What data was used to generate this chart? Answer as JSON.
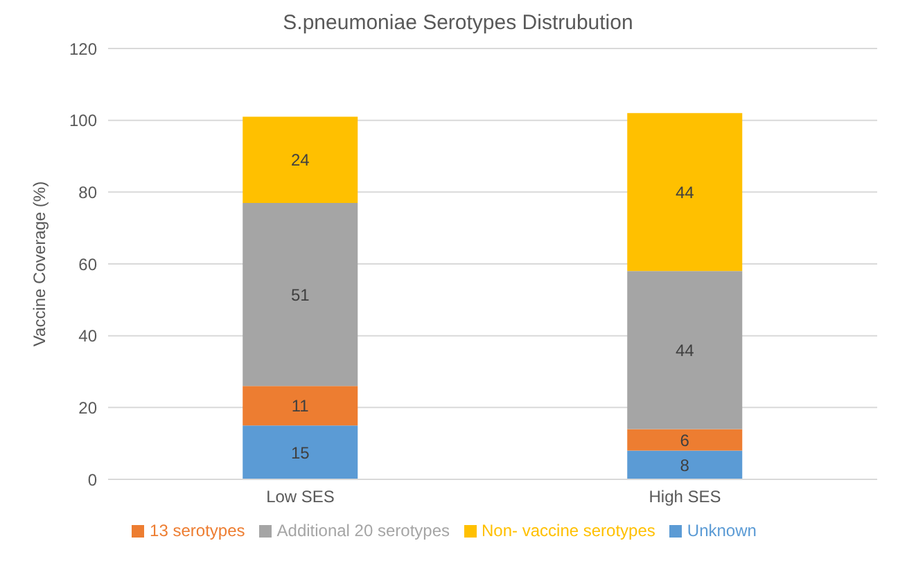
{
  "chart_data": {
    "type": "bar",
    "title": "S.pneumoniae Serotypes Distrubution",
    "ylabel": "Vaccine Coverage (%)",
    "categories": [
      "Low SES",
      "High SES"
    ],
    "stacked": true,
    "data_labels": true,
    "grid": "y",
    "legend": "bottom",
    "ylim": [
      0,
      120
    ],
    "yticks": [
      0,
      20,
      40,
      60,
      80,
      100,
      120
    ],
    "series": [
      {
        "name": "Unknown",
        "color": "#5b9bd5",
        "values": [
          15,
          8
        ]
      },
      {
        "name": "13 serotypes",
        "color": "#ed7d31",
        "values": [
          11,
          6
        ]
      },
      {
        "name": "Additional 20 serotypes",
        "color": "#a5a5a5",
        "values": [
          51,
          44
        ]
      },
      {
        "name": "Non- vaccine serotypes",
        "color": "#ffc000",
        "values": [
          24,
          44
        ]
      }
    ]
  }
}
